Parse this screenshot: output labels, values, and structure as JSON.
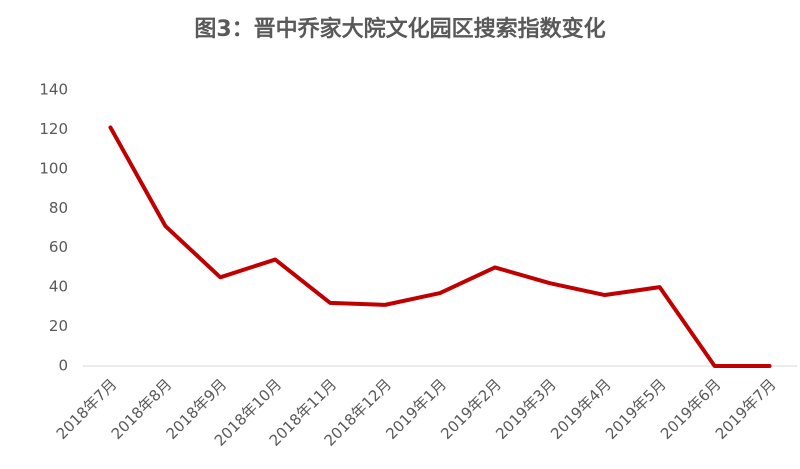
{
  "chart_data": {
    "type": "line",
    "title": "图3：晋中乔家大院文化园区搜索指数变化",
    "categories": [
      "2018年7月",
      "2018年8月",
      "2018年9月",
      "2018年10月",
      "2018年11月",
      "2018年12月",
      "2019年1月",
      "2019年2月",
      "2019年3月",
      "2019年4月",
      "2019年5月",
      "2019年6月",
      "2019年7月"
    ],
    "values": [
      121,
      71,
      45,
      54,
      32,
      31,
      37,
      50,
      42,
      36,
      40,
      0,
      0
    ],
    "color": "#c00000",
    "ylim": [
      0,
      140
    ],
    "yticks": [
      0,
      20,
      40,
      60,
      80,
      100,
      120,
      140
    ],
    "grid": false
  }
}
